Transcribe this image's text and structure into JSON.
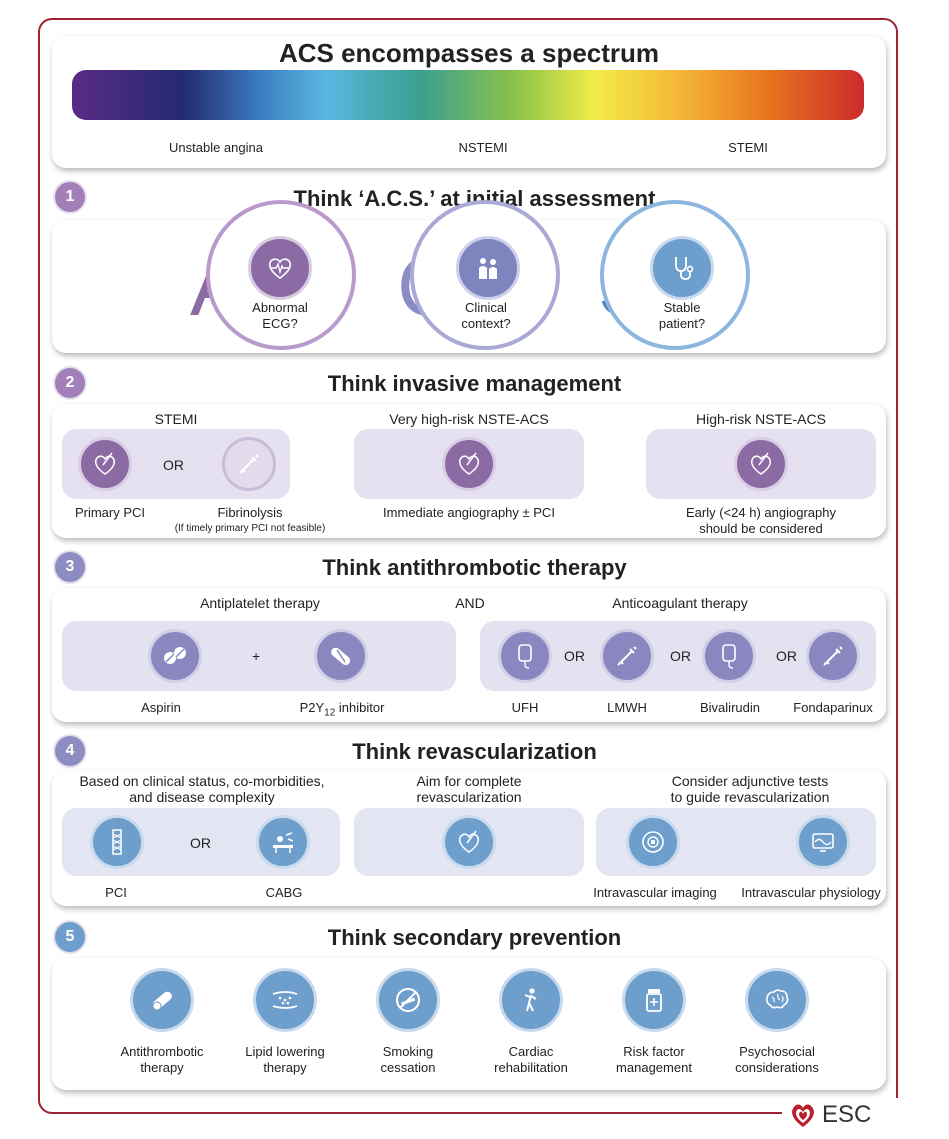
{
  "header": {
    "title": "ACS encompasses a spectrum",
    "spectrum": [
      "Unstable angina",
      "NSTEMI",
      "STEMI"
    ]
  },
  "s1": {
    "number": "1",
    "title": "Think ‘A.C.S.’ at initial assessment",
    "items": [
      {
        "letter": "A",
        "line1": "Abnormal",
        "line2": "ECG?",
        "icon": "ecg-heart-icon"
      },
      {
        "letter": "C",
        "line1": "Clinical",
        "line2": "context?",
        "icon": "doctor-patient-icon"
      },
      {
        "letter": "S",
        "line1": "Stable",
        "line2": "patient?",
        "icon": "stethoscope-icon"
      }
    ]
  },
  "s2": {
    "number": "2",
    "title": "Think invasive management",
    "headers": [
      "STEMI",
      "Very high-risk NSTE-ACS",
      "High-risk NSTE-ACS"
    ],
    "or": "OR",
    "labels": {
      "primary_pci": "Primary PCI",
      "fibrinolysis": "Fibrinolysis",
      "fibrinolysis_note": "(If timely primary PCI not feasible)",
      "immediate": "Immediate angiography ± PCI",
      "early1": "Early (<24 h) angiography",
      "early2": "should be considered"
    }
  },
  "s3": {
    "number": "3",
    "title": "Think antithrombotic therapy",
    "antiplatelet": "Antiplatelet therapy",
    "and": "AND",
    "anticoagulant": "Anticoagulant therapy",
    "plus": "+",
    "or": "OR",
    "aspirin": "Aspirin",
    "p2y_prefix": "P2Y",
    "p2y_sub": "12",
    "p2y_suffix": " inhibitor",
    "anticoagulants": [
      "UFH",
      "LMWH",
      "Bivalirudin",
      "Fondaparinux"
    ]
  },
  "s4": {
    "number": "4",
    "title": "Think revascularization",
    "h1a": "Based on clinical status, co-morbidities,",
    "h1b": "and disease complexity",
    "h2a": "Aim for complete",
    "h2b": "revascularization",
    "h3a": "Consider adjunctive tests",
    "h3b": "to guide revascularization",
    "or": "OR",
    "pci": "PCI",
    "cabg": "CABG",
    "ivi": "Intravascular imaging",
    "ivp": "Intravascular physiology"
  },
  "s5": {
    "number": "5",
    "title": "Think secondary prevention",
    "items": [
      {
        "l1": "Antithrombotic",
        "l2": "therapy"
      },
      {
        "l1": "Lipid lowering",
        "l2": "therapy"
      },
      {
        "l1": "Smoking",
        "l2": "cessation"
      },
      {
        "l1": "Cardiac",
        "l2": "rehabilitation"
      },
      {
        "l1": "Risk factor",
        "l2": "management"
      },
      {
        "l1": "Psychosocial",
        "l2": "considerations"
      }
    ]
  },
  "logo": {
    "text": "ESC"
  },
  "colors": {
    "frame": "#9b2433",
    "purple": "#8c6aa4",
    "blue": "#6e9ecb",
    "box": "#e6e1f0"
  }
}
